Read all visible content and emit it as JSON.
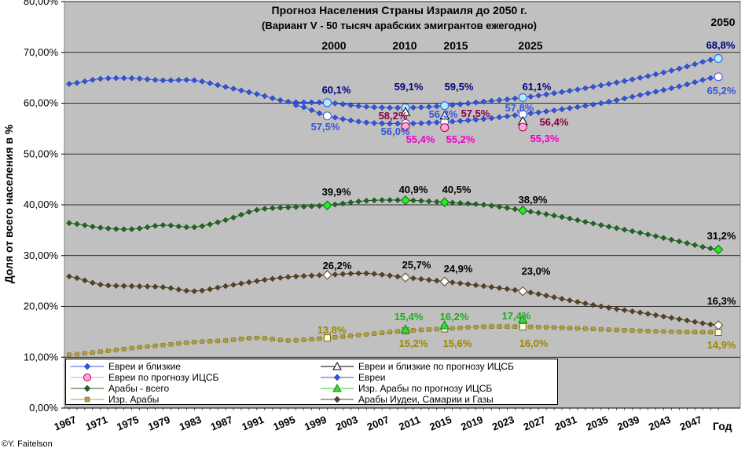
{
  "chart_data": {
    "type": "line",
    "title": "Прогноз Населения Страны Израиля до 2050 г.",
    "subtitle": "(Вариант V - 50 тысяч арабских эмигрантов ежегодно)",
    "ylabel": "Доля от всего населения в %",
    "xlabel": "Год",
    "ylim": [
      0,
      80
    ],
    "xlim": [
      1967,
      2052
    ],
    "yticks": [
      "0,00%",
      "10,00%",
      "20,00%",
      "30,00%",
      "40,00%",
      "50,00%",
      "60,00%",
      "70,00%",
      "80,00%"
    ],
    "xticks": [
      "1967",
      "1971",
      "1975",
      "1979",
      "1983",
      "1987",
      "1991",
      "1995",
      "1999",
      "2003",
      "2007",
      "2011",
      "2015",
      "2019",
      "2023",
      "2027",
      "2031",
      "2035",
      "2039",
      "2043",
      "2047"
    ],
    "year_markers": [
      "2000",
      "2010",
      "2015",
      "2025",
      "2050"
    ],
    "series": [
      {
        "name": "Евреи и близкие",
        "color": "#3355dd",
        "x": [
          1967,
          1971,
          1975,
          1979,
          1983,
          1987,
          1991,
          1995,
          2000,
          2005,
          2010,
          2015,
          2020,
          2025,
          2030,
          2035,
          2040,
          2045,
          2050
        ],
        "values": [
          63.8,
          64.8,
          64.9,
          64.5,
          64.5,
          63.2,
          61.8,
          60.3,
          60.1,
          59.3,
          59.1,
          59.5,
          60.3,
          61.1,
          62.2,
          63.5,
          65.0,
          66.8,
          68.8
        ]
      },
      {
        "name": "Евреи",
        "color": "#3355dd",
        "x": [
          1996,
          2000,
          2005,
          2010,
          2015,
          2020,
          2025,
          2030,
          2035,
          2040,
          2045,
          2050
        ],
        "values": [
          59.6,
          57.5,
          56.2,
          56.0,
          56.3,
          56.9,
          57.8,
          58.8,
          60.0,
          61.6,
          63.3,
          65.2
        ]
      },
      {
        "name": "Арабы - всего",
        "color": "#226622",
        "x": [
          1967,
          1971,
          1975,
          1979,
          1983,
          1987,
          1991,
          1995,
          2000,
          2005,
          2010,
          2015,
          2020,
          2025,
          2030,
          2035,
          2040,
          2045,
          2050
        ],
        "values": [
          36.4,
          35.5,
          35.2,
          36.0,
          35.6,
          37.0,
          39.0,
          39.5,
          39.9,
          40.8,
          40.9,
          40.5,
          40.0,
          38.9,
          37.6,
          36.0,
          34.5,
          32.8,
          31.2
        ]
      },
      {
        "name": "Изр. Арабы",
        "color": "#aaa040",
        "x": [
          1967,
          1971,
          1975,
          1979,
          1983,
          1987,
          1991,
          1995,
          2000,
          2005,
          2010,
          2015,
          2020,
          2025,
          2030,
          2035,
          2040,
          2045,
          2050
        ],
        "values": [
          10.5,
          11.1,
          11.8,
          12.4,
          13.0,
          13.3,
          13.8,
          13.3,
          13.8,
          14.5,
          15.2,
          15.6,
          16.0,
          16.0,
          15.8,
          15.5,
          15.2,
          15.0,
          14.9
        ]
      },
      {
        "name": "Арабы Иудеи, Самарии и Газы",
        "color": "#554422",
        "x": [
          1967,
          1971,
          1975,
          1979,
          1983,
          1987,
          1991,
          1995,
          2000,
          2005,
          2010,
          2015,
          2020,
          2025,
          2030,
          2035,
          2040,
          2045,
          2050
        ],
        "values": [
          25.9,
          24.3,
          24.0,
          23.8,
          23.0,
          24.0,
          25.0,
          25.8,
          26.2,
          26.5,
          25.7,
          24.9,
          24.0,
          23.0,
          21.5,
          20.0,
          18.8,
          17.5,
          16.3
        ]
      },
      {
        "name": "Евреи и близкие по прогнозу ИЦСБ",
        "color": "#000000",
        "x": [
          2010,
          2015,
          2025
        ],
        "values": [
          58.2,
          57.5,
          56.4
        ]
      },
      {
        "name": "Евреи по прогнозу ИЦСБ",
        "color": "#ff88cc",
        "x": [
          2010,
          2015,
          2025
        ],
        "values": [
          55.4,
          55.2,
          55.3
        ]
      },
      {
        "name": "Изр. Арабы по прогнозу ИЦСБ",
        "color": "#33cc33",
        "x": [
          2010,
          2015,
          2025
        ],
        "values": [
          15.4,
          16.2,
          17.4
        ]
      }
    ],
    "annotations": [
      {
        "text": "60,1%",
        "color": "#000080"
      },
      {
        "text": "59,1%",
        "color": "#000080"
      },
      {
        "text": "59,5%",
        "color": "#000080"
      },
      {
        "text": "61,1%",
        "color": "#000080"
      },
      {
        "text": "68,8%",
        "color": "#000080"
      },
      {
        "text": "57,5%",
        "color": "#3355dd"
      },
      {
        "text": "56,0%",
        "color": "#3355dd"
      },
      {
        "text": "56,3%",
        "color": "#3355dd"
      },
      {
        "text": "57,8%",
        "color": "#3355dd"
      },
      {
        "text": "65,2%",
        "color": "#3355dd"
      },
      {
        "text": "58,2%",
        "color": "#880044"
      },
      {
        "text": "57,5%",
        "color": "#880044"
      },
      {
        "text": "56,4%",
        "color": "#880044"
      },
      {
        "text": "55,4%",
        "color": "#ee00cc"
      },
      {
        "text": "55,2%",
        "color": "#ee00cc"
      },
      {
        "text": "55,3%",
        "color": "#ee00cc"
      },
      {
        "text": "39,9%",
        "color": "#000000"
      },
      {
        "text": "40,9%",
        "color": "#000000"
      },
      {
        "text": "40,5%",
        "color": "#000000"
      },
      {
        "text": "38,9%",
        "color": "#000000"
      },
      {
        "text": "31,2%",
        "color": "#000000"
      },
      {
        "text": "26,2%",
        "color": "#000000"
      },
      {
        "text": "25,7%",
        "color": "#000000"
      },
      {
        "text": "24,9%",
        "color": "#000000"
      },
      {
        "text": "23,0%",
        "color": "#000000"
      },
      {
        "text": "16,3%",
        "color": "#000000"
      },
      {
        "text": "15,4%",
        "color": "#22aa22"
      },
      {
        "text": "16,2%",
        "color": "#22aa22"
      },
      {
        "text": "17,4%",
        "color": "#22aa22"
      },
      {
        "text": "13,8%",
        "color": "#998800"
      },
      {
        "text": "15,2%",
        "color": "#998800"
      },
      {
        "text": "15,6%",
        "color": "#998800"
      },
      {
        "text": "16,0%",
        "color": "#998800"
      },
      {
        "text": "14,9%",
        "color": "#998800"
      }
    ],
    "legend_position": "bottom-left",
    "grid": true
  },
  "credit": "©Y. Faitelson"
}
